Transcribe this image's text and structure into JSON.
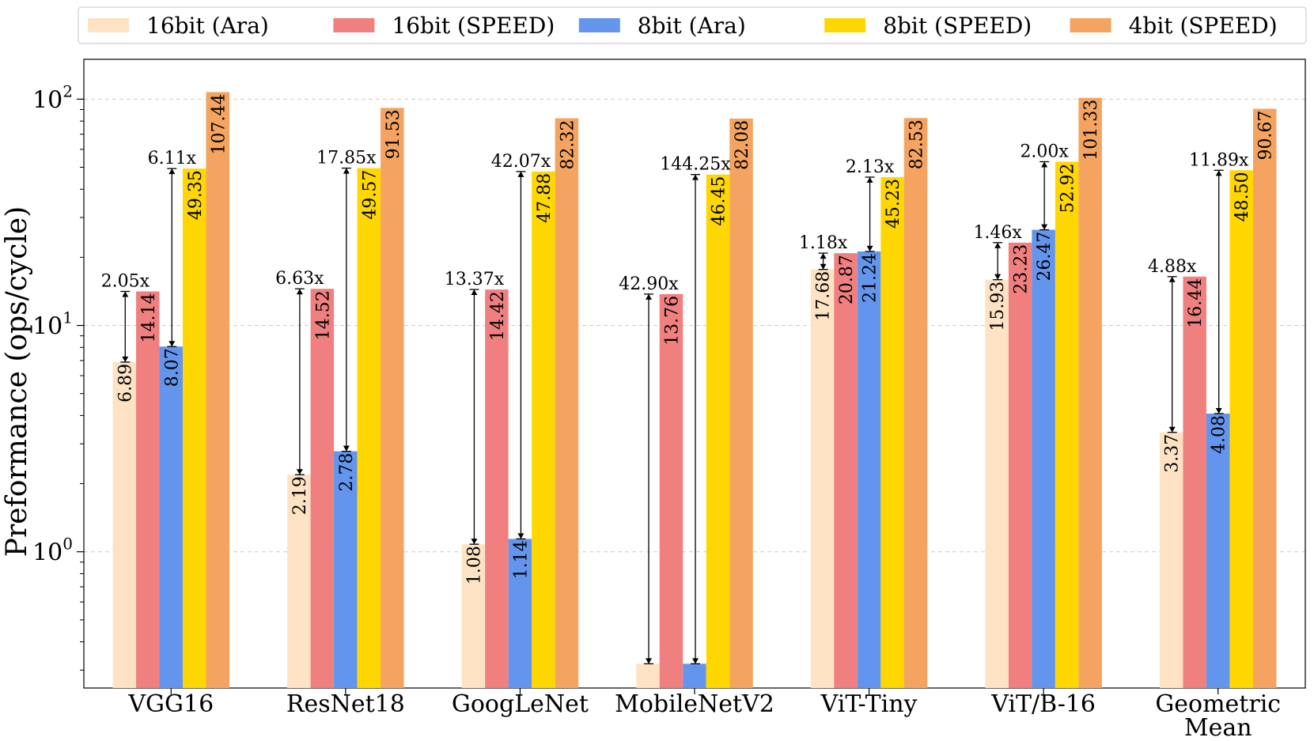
{
  "chart_data": {
    "type": "bar",
    "scale": "log",
    "ylabel": "Preformance (ops/cycle)",
    "xlabel": "",
    "ylim": [
      0.25,
      150
    ],
    "grid": true,
    "legend_position": "top",
    "y_ticks": [
      {
        "value": 1,
        "base": "10",
        "exp": "0"
      },
      {
        "value": 10,
        "base": "10",
        "exp": "1"
      },
      {
        "value": 100,
        "base": "10",
        "exp": "2"
      }
    ],
    "categories": [
      [
        "VGG16"
      ],
      [
        "ResNet18"
      ],
      [
        "GoogLeNet"
      ],
      [
        "MobileNetV2"
      ],
      [
        "ViT-Tiny"
      ],
      [
        "ViT/B-16"
      ],
      [
        "Geometric",
        "Mean"
      ]
    ],
    "series": [
      {
        "name": "16bit (Ara)",
        "color": "#FDE3C4",
        "values": [
          6.89,
          2.19,
          1.08,
          0.32,
          17.68,
          15.93,
          3.37
        ],
        "labels": [
          "6.89",
          "2.19",
          "1.08",
          "",
          "17.68",
          "15.93",
          "3.37"
        ]
      },
      {
        "name": "16bit (SPEED)",
        "color": "#F08080",
        "values": [
          14.14,
          14.52,
          14.42,
          13.76,
          20.87,
          23.23,
          16.44
        ],
        "labels": [
          "14.14",
          "14.52",
          "14.42",
          "13.76",
          "20.87",
          "23.23",
          "16.44"
        ]
      },
      {
        "name": "8bit (Ara)",
        "color": "#6495ED",
        "values": [
          8.07,
          2.78,
          1.14,
          0.32,
          21.24,
          26.47,
          4.08
        ],
        "labels": [
          "8.07",
          "2.78",
          "1.14",
          "",
          "21.24",
          "26.47",
          "4.08"
        ]
      },
      {
        "name": "8bit (SPEED)",
        "color": "#FFD700",
        "values": [
          49.35,
          49.57,
          47.88,
          46.45,
          45.23,
          52.92,
          48.5
        ],
        "labels": [
          "49.35",
          "49.57",
          "47.88",
          "46.45",
          "45.23",
          "52.92",
          "48.50"
        ]
      },
      {
        "name": "4bit (SPEED)",
        "color": "#F4A460",
        "values": [
          107.44,
          91.53,
          82.32,
          82.08,
          82.53,
          101.33,
          90.67
        ],
        "labels": [
          "107.44",
          "91.53",
          "82.32",
          "82.08",
          "82.53",
          "101.33",
          "90.67"
        ]
      }
    ],
    "speedup_16bit": [
      "2.05x",
      "6.63x",
      "13.37x",
      "42.90x",
      "1.18x",
      "1.46x",
      "4.88x"
    ],
    "speedup_8bit": [
      "6.11x",
      "17.85x",
      "42.07x",
      "144.25x",
      "2.13x",
      "2.00x",
      "11.89x"
    ]
  }
}
